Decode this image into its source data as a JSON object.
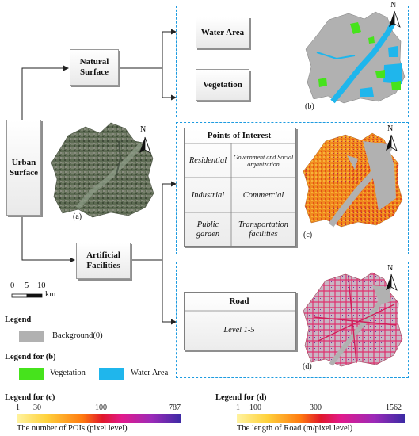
{
  "nodes": {
    "urban": "Urban Surface",
    "natural": "Natural Surface",
    "artificial": "Artificial Facilities",
    "water": "Water Area",
    "vegetation": "Vegetation",
    "poi_title": "Points of Interest",
    "residential": "Residential",
    "government": "Government and Social organization",
    "industrial": "Industrial",
    "commercial": "Commercial",
    "public": "Public garden",
    "transport": "Transportation facilities",
    "road": "Road",
    "level": "Level 1-5"
  },
  "captions": {
    "a": "(a)",
    "b": "(b)",
    "c": "(c)",
    "d": "(d)"
  },
  "north": "N",
  "scale": {
    "t0": "0",
    "t5": "5",
    "t10": "10",
    "unit": "km"
  },
  "legend": {
    "title": "Legend",
    "background": "Background(0)",
    "b_title": "Legend for (b)",
    "vegetation": "Vegetation",
    "water": "Water Area",
    "c_title": "Legend for (c)",
    "c_ticks": [
      "1",
      "30",
      "100",
      "787"
    ],
    "c_caption": "The number of POIs (pixel level)",
    "d_title": "Legend for (d)",
    "d_ticks": [
      "1",
      "100",
      "300",
      "1562"
    ],
    "d_caption": "The length of Road (m/pixel level)"
  },
  "colors": {
    "dash": "#1d9be0",
    "background": "#b1b1b1",
    "vegetation": "#46e31c",
    "water": "#1fb6ec"
  }
}
